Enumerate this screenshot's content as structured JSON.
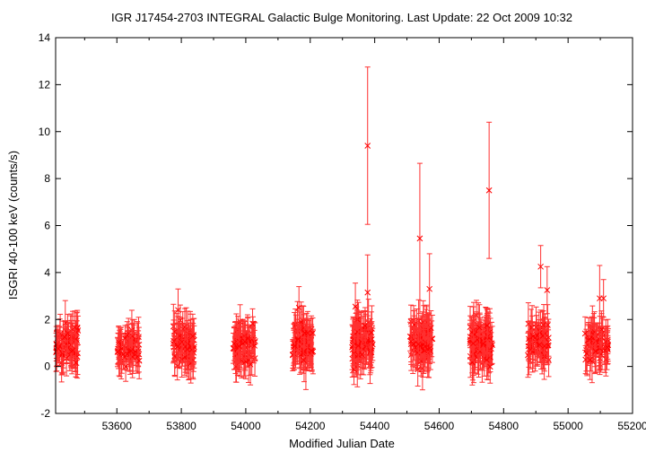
{
  "chart_data": {
    "type": "scatter",
    "title": "IGR J17454-2703   INTEGRAL Galactic Bulge Monitoring.  Last Update: 22 Oct 2009 10:32",
    "xlabel": "Modified Julian Date",
    "ylabel": "ISGRI 40-100 keV (counts/s)",
    "xlim": [
      53410,
      55200
    ],
    "ylim": [
      -2,
      14
    ],
    "xticks": [
      53600,
      53800,
      54000,
      54200,
      54400,
      54600,
      54800,
      55000,
      55200
    ],
    "yticks": [
      -2,
      0,
      2,
      4,
      6,
      8,
      10,
      12,
      14
    ],
    "grid": false,
    "color": "#ff0000",
    "markers": "x with vertical error bars",
    "outliers": [
      {
        "x": 54378,
        "y": 9.4,
        "yerr": 3.35
      },
      {
        "x": 54540,
        "y": 5.45,
        "yerr": 3.2
      },
      {
        "x": 54755,
        "y": 7.5,
        "yerr": 2.9
      },
      {
        "x": 54915,
        "y": 4.25,
        "yerr": 0.9
      },
      {
        "x": 54378,
        "y": 3.15,
        "yerr": 1.6
      },
      {
        "x": 54570,
        "y": 3.3,
        "yerr": 1.5
      },
      {
        "x": 54935,
        "y": 3.25,
        "yerr": 1.0
      },
      {
        "x": 55098,
        "y": 2.9,
        "yerr": 1.4
      },
      {
        "x": 55110,
        "y": 2.9,
        "yerr": 0.8
      },
      {
        "x": 53790,
        "y": 2.4,
        "yerr": 0.9
      },
      {
        "x": 54165,
        "y": 2.5,
        "yerr": 0.9
      },
      {
        "x": 54340,
        "y": 2.55,
        "yerr": 1.0
      }
    ],
    "clusters": [
      {
        "x_range": [
          53410,
          53480
        ],
        "y_range": [
          -0.3,
          2.1
        ],
        "count": 70,
        "yerr": 0.8
      },
      {
        "x_range": [
          53600,
          53670
        ],
        "y_range": [
          -0.2,
          1.7
        ],
        "count": 60,
        "yerr": 0.75
      },
      {
        "x_range": [
          53775,
          53840
        ],
        "y_range": [
          -0.3,
          2.2
        ],
        "count": 70,
        "yerr": 0.8
      },
      {
        "x_range": [
          53960,
          54030
        ],
        "y_range": [
          -0.3,
          2.1
        ],
        "count": 70,
        "yerr": 0.8
      },
      {
        "x_range": [
          54145,
          54210
        ],
        "y_range": [
          -0.3,
          2.2
        ],
        "count": 70,
        "yerr": 0.8
      },
      {
        "x_range": [
          54330,
          54395
        ],
        "y_range": [
          -0.3,
          2.3
        ],
        "count": 80,
        "yerr": 0.85
      },
      {
        "x_range": [
          54510,
          54580
        ],
        "y_range": [
          -0.3,
          2.4
        ],
        "count": 80,
        "yerr": 0.85
      },
      {
        "x_range": [
          54695,
          54765
        ],
        "y_range": [
          -0.4,
          2.4
        ],
        "count": 90,
        "yerr": 0.85
      },
      {
        "x_range": [
          54875,
          54940
        ],
        "y_range": [
          -0.2,
          2.2
        ],
        "count": 60,
        "yerr": 0.8
      },
      {
        "x_range": [
          55050,
          55125
        ],
        "y_range": [
          -0.3,
          2.0
        ],
        "count": 60,
        "yerr": 0.8
      }
    ]
  }
}
